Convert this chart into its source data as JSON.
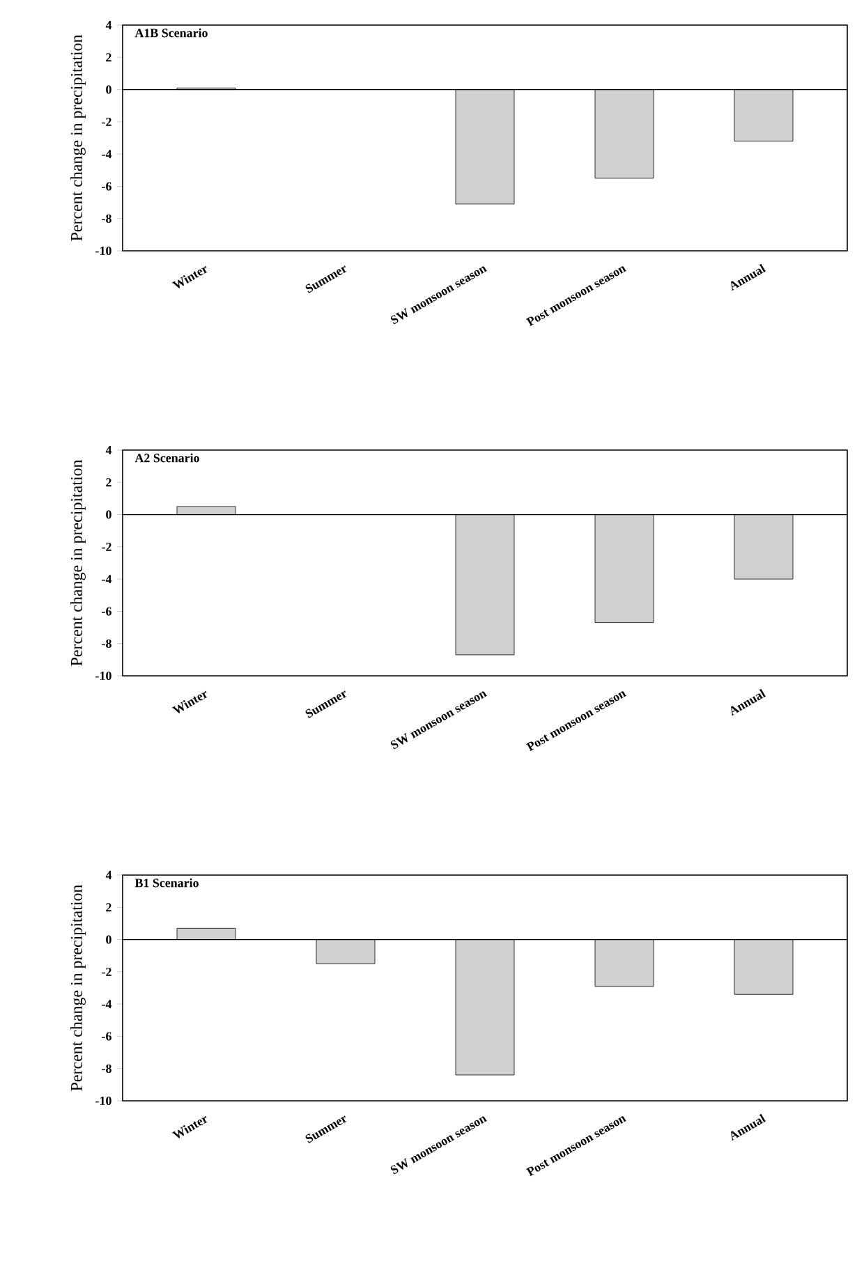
{
  "chart_data": [
    {
      "type": "bar",
      "title": "A1B Scenario",
      "ylabel": "Percent change in precipitation",
      "categories": [
        "Winter",
        "Summer",
        "SW monsoon season",
        "Post monsoon season",
        "Annual"
      ],
      "values": [
        0.1,
        0,
        -7.1,
        -5.5,
        -3.2
      ],
      "color": "#d0d0d0",
      "ylim": [
        -10,
        4
      ],
      "yticks": [
        -10,
        -8,
        -6,
        -4,
        -2,
        0,
        2,
        4
      ],
      "ref_lines": [
        {
          "axis": "y",
          "value": 0
        }
      ]
    },
    {
      "type": "bar",
      "title": "A2 Scenario",
      "ylabel": "Percent change in precipitation",
      "categories": [
        "Winter",
        "Summer",
        "SW monsoon season",
        "Post monsoon season",
        "Annual"
      ],
      "values": [
        0.5,
        0,
        -8.7,
        -6.7,
        -4.0
      ],
      "color": "#d0d0d0",
      "ylim": [
        -10,
        4
      ],
      "yticks": [
        -10,
        -8,
        -6,
        -4,
        -2,
        0,
        2,
        4
      ],
      "ref_lines": [
        {
          "axis": "y",
          "value": 0
        }
      ]
    },
    {
      "type": "bar",
      "title": "B1 Scenario",
      "ylabel": "Percent change in precipitation",
      "categories": [
        "Winter",
        "Summer",
        "SW monsoon season",
        "Post monsoon season",
        "Annual"
      ],
      "values": [
        0.7,
        -1.5,
        -8.4,
        -2.9,
        -3.4
      ],
      "color": "#d0d0d0",
      "ylim": [
        -10,
        4
      ],
      "yticks": [
        -10,
        -8,
        -6,
        -4,
        -2,
        0,
        2,
        4
      ],
      "ref_lines": [
        {
          "axis": "y",
          "value": 0
        }
      ]
    }
  ]
}
